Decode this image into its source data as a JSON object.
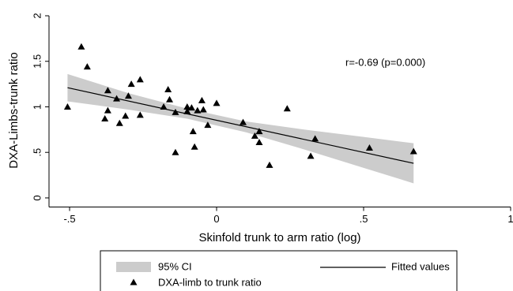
{
  "chart_data": {
    "type": "scatter",
    "x_label": "Skinfold trunk to arm ratio (log)",
    "y_label": "DXA-Limbs-trunk ratio",
    "annotation": "r=-0.69 (p=0.000)",
    "xlim": [
      -0.57,
      1.0
    ],
    "ylim": [
      -0.1,
      2.0
    ],
    "xticks": [
      {
        "value": -0.5,
        "label": "-.5"
      },
      0,
      {
        "value": 0.5,
        "label": ".5"
      },
      1
    ],
    "yticks": [
      0,
      {
        "value": 0.5,
        "label": ".5"
      },
      1,
      1.5,
      2
    ],
    "band": {
      "name": "95% CI",
      "color": "#cccccc",
      "x": [
        -0.507,
        -0.3,
        -0.1,
        0.1,
        0.3,
        0.5,
        0.67
      ],
      "lower": [
        1.06,
        0.97,
        0.87,
        0.72,
        0.53,
        0.33,
        0.16
      ],
      "upper": [
        1.36,
        1.15,
        0.98,
        0.84,
        0.75,
        0.67,
        0.6
      ]
    },
    "fit": {
      "name": "Fitted values",
      "color": "#000000",
      "x": [
        -0.507,
        0.67
      ],
      "values": [
        1.21,
        0.38
      ]
    },
    "points": {
      "name": "DXA-limb to trunk ratio",
      "color": "#000000",
      "x": [
        -0.507,
        -0.46,
        -0.44,
        -0.37,
        -0.37,
        -0.38,
        -0.34,
        -0.33,
        -0.31,
        -0.3,
        -0.29,
        -0.26,
        -0.26,
        -0.18,
        -0.165,
        -0.16,
        -0.14,
        -0.14,
        -0.1,
        -0.1,
        -0.085,
        -0.08,
        -0.075,
        -0.065,
        -0.05,
        -0.045,
        -0.03,
        0.0,
        0.09,
        0.13,
        0.145,
        0.145,
        0.18,
        0.24,
        0.32,
        0.335,
        0.52,
        0.67
      ],
      "values": [
        1.0,
        1.66,
        1.44,
        1.18,
        0.96,
        0.87,
        1.09,
        0.82,
        0.9,
        1.12,
        1.25,
        1.3,
        0.91,
        1.0,
        1.19,
        1.08,
        0.94,
        0.5,
        1.0,
        0.95,
        0.99,
        0.73,
        0.56,
        0.96,
        1.07,
        0.97,
        0.8,
        1.04,
        0.83,
        0.68,
        0.73,
        0.61,
        0.36,
        0.98,
        0.46,
        0.65,
        0.55,
        0.51
      ]
    }
  }
}
